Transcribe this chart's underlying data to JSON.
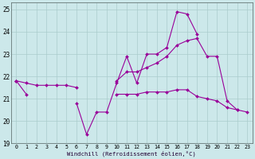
{
  "xlabel": "Windchill (Refroidissement éolien,°C)",
  "x": [
    0,
    1,
    2,
    3,
    4,
    5,
    6,
    7,
    8,
    9,
    10,
    11,
    12,
    13,
    14,
    15,
    16,
    17,
    18,
    19,
    20,
    21,
    22,
    23
  ],
  "line1": [
    21.8,
    21.2,
    null,
    null,
    null,
    null,
    20.8,
    19.4,
    20.4,
    20.4,
    21.7,
    22.9,
    21.7,
    23.0,
    23.0,
    23.3,
    24.9,
    24.8,
    23.9,
    null,
    null,
    null,
    null,
    null
  ],
  "line2": [
    21.8,
    21.7,
    21.6,
    21.6,
    21.6,
    21.6,
    21.5,
    null,
    null,
    null,
    null,
    null,
    null,
    null,
    null,
    null,
    null,
    null,
    null,
    null,
    null,
    null,
    null,
    null
  ],
  "line3": [
    21.8,
    null,
    null,
    null,
    null,
    null,
    null,
    null,
    null,
    null,
    21.8,
    22.2,
    22.2,
    22.4,
    22.6,
    22.9,
    23.4,
    23.6,
    23.7,
    22.9,
    22.9,
    20.9,
    20.5,
    null
  ],
  "line4": [
    21.8,
    null,
    null,
    null,
    null,
    null,
    null,
    null,
    null,
    null,
    21.2,
    21.2,
    21.2,
    21.3,
    21.3,
    21.3,
    21.4,
    21.4,
    21.1,
    21.0,
    20.9,
    20.6,
    20.5,
    20.4
  ],
  "line_color": "#990099",
  "bg_color": "#cce8ea",
  "grid_color": "#aacccc",
  "ylim": [
    19.0,
    25.3
  ],
  "xlim": [
    -0.5,
    23.5
  ],
  "yticks": [
    19,
    20,
    21,
    22,
    23,
    24,
    25
  ],
  "xticks": [
    0,
    1,
    2,
    3,
    4,
    5,
    6,
    7,
    8,
    9,
    10,
    11,
    12,
    13,
    14,
    15,
    16,
    17,
    18,
    19,
    20,
    21,
    22,
    23
  ]
}
